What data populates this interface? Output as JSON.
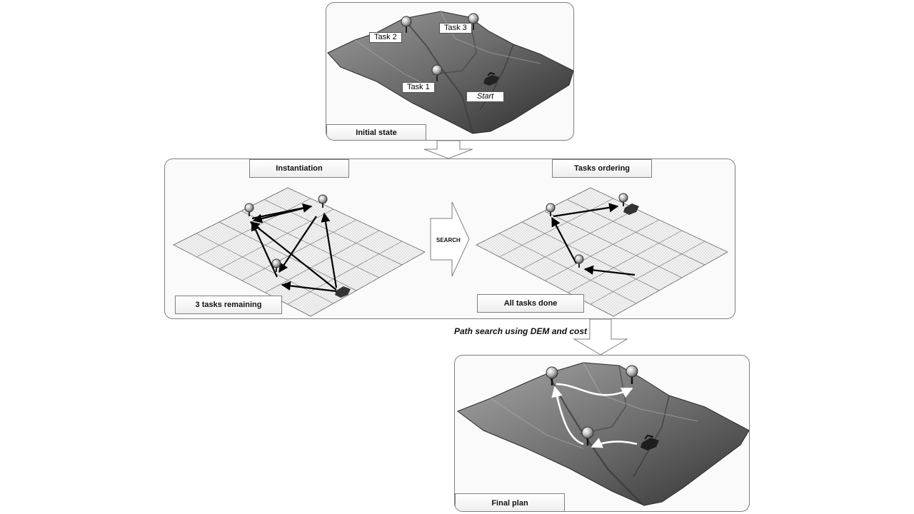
{
  "initial_panel": {
    "label": "Initial state",
    "tags": {
      "task1": "Task 1",
      "task2": "Task 2",
      "task3": "Task 3",
      "start": "Start"
    }
  },
  "middle_panel": {
    "instantiation_label": "Instantiation",
    "ordering_label": "Tasks ordering",
    "remaining_label": "3 tasks remaining",
    "done_label": "All tasks done",
    "search_label": "SEARCH"
  },
  "path_caption": "Path search using DEM and cost",
  "final_panel": {
    "label": "Final plan"
  },
  "colors": {
    "border": "#7f7f7f",
    "terrain_dark": "#3a3a3a",
    "terrain_light": "#9a9a9a",
    "arrow": "#000000"
  }
}
